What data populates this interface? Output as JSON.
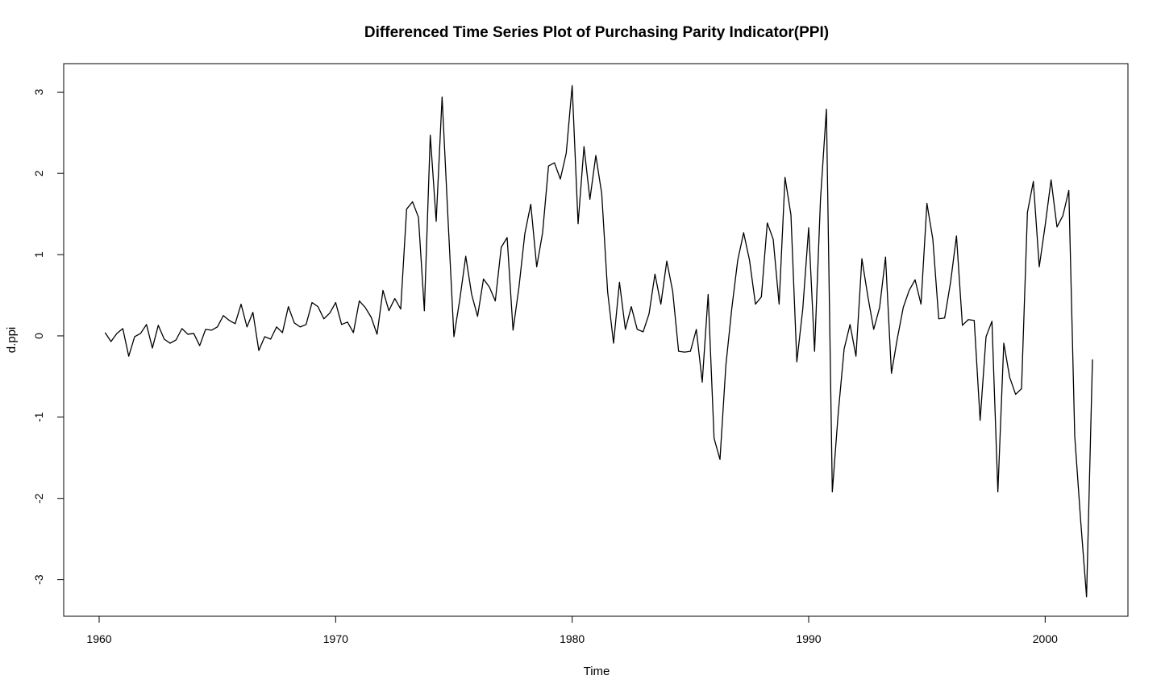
{
  "chart_data": {
    "type": "line",
    "title": "Differenced Time Series Plot of Purchasing Parity Indicator(PPI)",
    "xlabel": "Time",
    "ylabel": "d.ppi",
    "xlim": [
      1958.5,
      2003.5
    ],
    "ylim": [
      -3.45,
      3.35
    ],
    "x_ticks": [
      1960,
      1970,
      1980,
      1990,
      2000
    ],
    "x_tick_labels": [
      "1960",
      "1970",
      "1980",
      "1990",
      "2000"
    ],
    "y_ticks": [
      -3,
      -2,
      -1,
      0,
      1,
      2,
      3
    ],
    "y_tick_labels": [
      "-3",
      "-2",
      "-1",
      "0",
      "1",
      "2",
      "3"
    ],
    "grid": false,
    "legend": "none",
    "line_color": "#000000",
    "series": [
      {
        "x_start": 1960.25,
        "x_step": 0.25,
        "values": [
          0.04,
          -0.07,
          0.03,
          0.09,
          -0.25,
          -0.01,
          0.03,
          0.14,
          -0.15,
          0.13,
          -0.04,
          -0.09,
          -0.05,
          0.09,
          0.02,
          0.03,
          -0.12,
          0.08,
          0.07,
          0.11,
          0.25,
          0.19,
          0.15,
          0.39,
          0.11,
          0.29,
          -0.18,
          -0.01,
          -0.04,
          0.11,
          0.04,
          0.36,
          0.16,
          0.11,
          0.14,
          0.41,
          0.36,
          0.21,
          0.28,
          0.41,
          0.14,
          0.17,
          0.04,
          0.43,
          0.35,
          0.23,
          0.02,
          0.56,
          0.31,
          0.46,
          0.33,
          1.56,
          1.65,
          1.46,
          0.31,
          2.47,
          1.41,
          2.94,
          1.44,
          -0.01,
          0.45,
          0.98,
          0.51,
          0.24,
          0.7,
          0.6,
          0.43,
          1.09,
          1.21,
          0.07,
          0.6,
          1.26,
          1.62,
          0.85,
          1.27,
          2.09,
          2.13,
          1.93,
          2.25,
          3.08,
          1.38,
          2.33,
          1.68,
          2.22,
          1.75,
          0.54,
          -0.09,
          0.66,
          0.08,
          0.36,
          0.08,
          0.05,
          0.27,
          0.76,
          0.39,
          0.92,
          0.55,
          -0.19,
          -0.2,
          -0.19,
          0.08,
          -0.57,
          0.51,
          -1.26,
          -1.52,
          -0.36,
          0.34,
          0.93,
          1.27,
          0.93,
          0.39,
          0.48,
          1.39,
          1.19,
          0.39,
          1.95,
          1.49,
          -0.32,
          0.33,
          1.33,
          -0.19,
          1.68,
          2.79,
          -1.92,
          -0.95,
          -0.16,
          0.14,
          -0.25,
          0.95,
          0.49,
          0.08,
          0.35,
          0.97,
          -0.46,
          -0.03,
          0.35,
          0.56,
          0.69,
          0.39,
          1.63,
          1.19,
          0.21,
          0.22,
          0.66,
          1.23,
          0.13,
          0.2,
          0.19,
          -1.04,
          -0.01,
          0.18,
          -1.92,
          -0.09,
          -0.51,
          -0.72,
          -0.65,
          1.52,
          1.9,
          0.85,
          1.36,
          1.92,
          1.34,
          1.48,
          1.79,
          -1.23,
          -2.27,
          -3.21,
          -0.29
        ]
      }
    ]
  }
}
